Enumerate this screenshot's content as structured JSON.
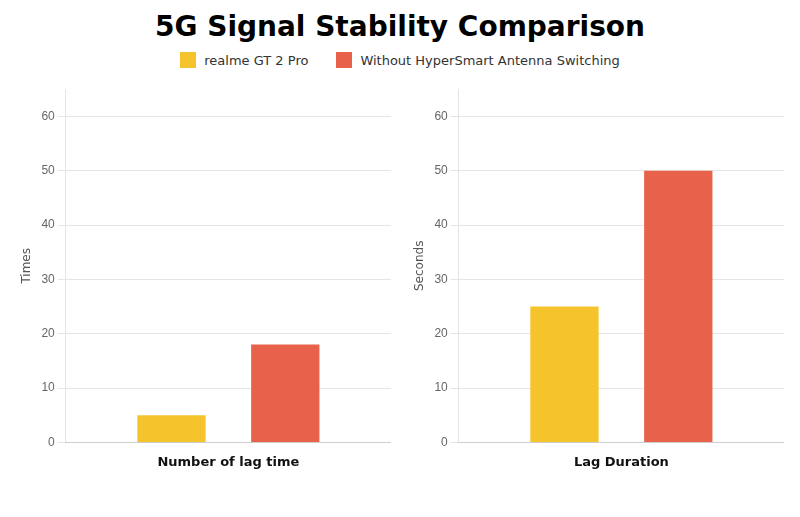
{
  "title": "5G Signal Stability Comparison",
  "chart_data": [
    {
      "type": "bar",
      "xlabel": "Number of lag time",
      "ylabel": "Times",
      "categories": [
        null
      ],
      "series": [
        {
          "name": "realme GT 2 Pro",
          "color": "#F5C42C",
          "values": [
            5
          ]
        },
        {
          "name": "Without HyperSmart Antenna Switching",
          "color": "#E8614A",
          "values": [
            18
          ]
        }
      ],
      "ylim": [
        0,
        65
      ],
      "yticks": [
        0,
        10,
        20,
        30,
        40,
        50,
        60
      ],
      "grid": true,
      "legend": "top",
      "tick_labels": "y"
    },
    {
      "type": "bar",
      "xlabel": "Lag Duration",
      "ylabel": "Seconds",
      "categories": [
        null
      ],
      "series": [
        {
          "name": "realme GT 2 Pro",
          "color": "#F5C42C",
          "values": [
            25
          ]
        },
        {
          "name": "Without HyperSmart Antenna Switching",
          "color": "#E8614A",
          "values": [
            50
          ]
        }
      ],
      "ylim": [
        0,
        65
      ],
      "yticks": [
        0,
        10,
        20,
        30,
        40,
        50,
        60
      ],
      "grid": true,
      "legend": "top",
      "tick_labels": "y"
    }
  ]
}
